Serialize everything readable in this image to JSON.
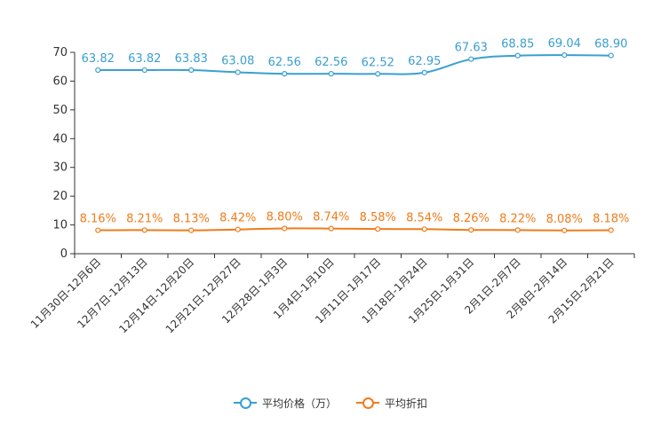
{
  "chart_data": {
    "type": "line",
    "categories": [
      "11月30日-12月6日",
      "12月7日-12月13日",
      "12月14日-12月20日",
      "12月21日-12月27日",
      "12月28日-1月3日",
      "1月4日-1月10日",
      "1月11日-1月17日",
      "1月18日-1月24日",
      "1月25日-1月31日",
      "2月1日-2月7日",
      "2月8日-2月14日",
      "2月15日-2月21日"
    ],
    "ylim": [
      0,
      70
    ],
    "yticks": [
      0,
      10,
      20,
      30,
      40,
      50,
      60,
      70
    ],
    "series": [
      {
        "name": "平均价格（万）",
        "color": "#3a9fd1",
        "values": [
          63.82,
          63.82,
          63.83,
          63.08,
          62.56,
          62.56,
          62.52,
          62.95,
          67.63,
          68.85,
          69.04,
          68.9
        ],
        "labels": [
          "63.82",
          "63.82",
          "63.83",
          "63.08",
          "62.56",
          "62.56",
          "62.52",
          "62.95",
          "67.63",
          "68.85",
          "69.04",
          "68.90"
        ]
      },
      {
        "name": "平均折扣",
        "color": "#f07b1a",
        "values": [
          8.16,
          8.21,
          8.13,
          8.42,
          8.8,
          8.74,
          8.58,
          8.54,
          8.26,
          8.22,
          8.08,
          8.18
        ],
        "labels": [
          "8.16%",
          "8.21%",
          "8.13%",
          "8.42%",
          "8.80%",
          "8.74%",
          "8.58%",
          "8.54%",
          "8.26%",
          "8.22%",
          "8.08%",
          "8.18%"
        ]
      }
    ]
  }
}
